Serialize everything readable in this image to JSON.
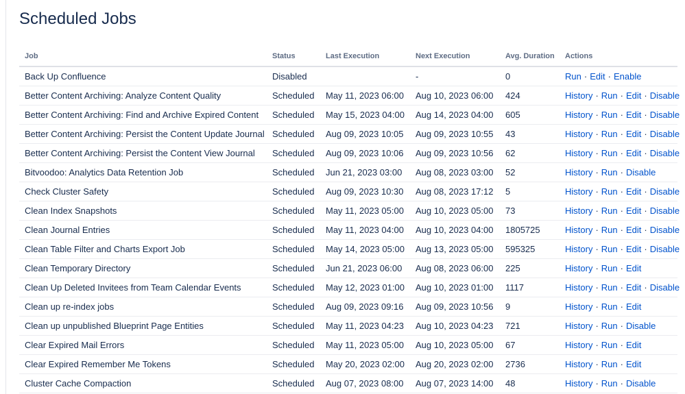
{
  "header": {
    "title": "Scheduled Jobs"
  },
  "table": {
    "columns": [
      "Job",
      "Status",
      "Last Execution",
      "Next Execution",
      "Avg. Duration",
      "Actions"
    ],
    "rows": [
      {
        "job": "Back Up Confluence",
        "status": "Disabled",
        "last_execution": "",
        "next_execution": "-",
        "avg_duration": 0,
        "actions": [
          "Run",
          "Edit",
          "Enable"
        ]
      },
      {
        "job": "Better Content Archiving: Analyze Content Quality",
        "status": "Scheduled",
        "last_execution": "May 11, 2023 06:00",
        "next_execution": "Aug 10, 2023 06:00",
        "avg_duration": 424,
        "actions": [
          "History",
          "Run",
          "Edit",
          "Disable"
        ]
      },
      {
        "job": "Better Content Archiving: Find and Archive Expired Content",
        "status": "Scheduled",
        "last_execution": "May 15, 2023 04:00",
        "next_execution": "Aug 14, 2023 04:00",
        "avg_duration": 605,
        "actions": [
          "History",
          "Run",
          "Edit",
          "Disable"
        ]
      },
      {
        "job": "Better Content Archiving: Persist the Content Update Journal",
        "status": "Scheduled",
        "last_execution": "Aug 09, 2023 10:05",
        "next_execution": "Aug 09, 2023 10:55",
        "avg_duration": 43,
        "actions": [
          "History",
          "Run",
          "Edit",
          "Disable"
        ]
      },
      {
        "job": "Better Content Archiving: Persist the Content View Journal",
        "status": "Scheduled",
        "last_execution": "Aug 09, 2023 10:06",
        "next_execution": "Aug 09, 2023 10:56",
        "avg_duration": 62,
        "actions": [
          "History",
          "Run",
          "Edit",
          "Disable"
        ]
      },
      {
        "job": "Bitvoodoo: Analytics Data Retention Job",
        "status": "Scheduled",
        "last_execution": "Jun 21, 2023 03:00",
        "next_execution": "Aug 08, 2023 03:00",
        "avg_duration": 52,
        "actions": [
          "History",
          "Run",
          "Disable"
        ]
      },
      {
        "job": "Check Cluster Safety",
        "status": "Scheduled",
        "last_execution": "Aug 09, 2023 10:30",
        "next_execution": "Aug 08, 2023 17:12",
        "avg_duration": 5,
        "actions": [
          "History",
          "Run",
          "Edit",
          "Disable"
        ]
      },
      {
        "job": "Clean Index Snapshots",
        "status": "Scheduled",
        "last_execution": "May 11, 2023 05:00",
        "next_execution": "Aug 10, 2023 05:00",
        "avg_duration": 73,
        "actions": [
          "History",
          "Run",
          "Edit",
          "Disable"
        ]
      },
      {
        "job": "Clean Journal Entries",
        "status": "Scheduled",
        "last_execution": "May 11, 2023 04:00",
        "next_execution": "Aug 10, 2023 04:00",
        "avg_duration": 1805725,
        "actions": [
          "History",
          "Run",
          "Edit",
          "Disable"
        ]
      },
      {
        "job": "Clean Table Filter and Charts Export Job",
        "status": "Scheduled",
        "last_execution": "May 14, 2023 05:00",
        "next_execution": "Aug 13, 2023 05:00",
        "avg_duration": 595325,
        "actions": [
          "History",
          "Run",
          "Edit",
          "Disable"
        ]
      },
      {
        "job": "Clean Temporary Directory",
        "status": "Scheduled",
        "last_execution": "Jun 21, 2023 06:00",
        "next_execution": "Aug 08, 2023 06:00",
        "avg_duration": 225,
        "actions": [
          "History",
          "Run",
          "Edit"
        ]
      },
      {
        "job": "Clean Up Deleted Invitees from Team Calendar Events",
        "status": "Scheduled",
        "last_execution": "May 12, 2023 01:00",
        "next_execution": "Aug 10, 2023 01:00",
        "avg_duration": 1117,
        "actions": [
          "History",
          "Run",
          "Edit",
          "Disable"
        ]
      },
      {
        "job": "Clean up re-index jobs",
        "status": "Scheduled",
        "last_execution": "Aug 09, 2023 09:16",
        "next_execution": "Aug 09, 2023 10:56",
        "avg_duration": 9,
        "actions": [
          "History",
          "Run",
          "Edit"
        ]
      },
      {
        "job": "Clean up unpublished Blueprint Page Entities",
        "status": "Scheduled",
        "last_execution": "May 11, 2023 04:23",
        "next_execution": "Aug 10, 2023 04:23",
        "avg_duration": 721,
        "actions": [
          "History",
          "Run",
          "Disable"
        ]
      },
      {
        "job": "Clear Expired Mail Errors",
        "status": "Scheduled",
        "last_execution": "May 11, 2023 05:00",
        "next_execution": "Aug 10, 2023 05:00",
        "avg_duration": 67,
        "actions": [
          "History",
          "Run",
          "Edit"
        ]
      },
      {
        "job": "Clear Expired Remember Me Tokens",
        "status": "Scheduled",
        "last_execution": "May 20, 2023 02:00",
        "next_execution": "Aug 20, 2023 02:00",
        "avg_duration": 2736,
        "actions": [
          "History",
          "Run",
          "Edit"
        ]
      },
      {
        "job": "Cluster Cache Compaction",
        "status": "Scheduled",
        "last_execution": "Aug 07, 2023 08:00",
        "next_execution": "Aug 07, 2023 14:00",
        "avg_duration": 48,
        "actions": [
          "History",
          "Run",
          "Disable"
        ]
      }
    ]
  }
}
